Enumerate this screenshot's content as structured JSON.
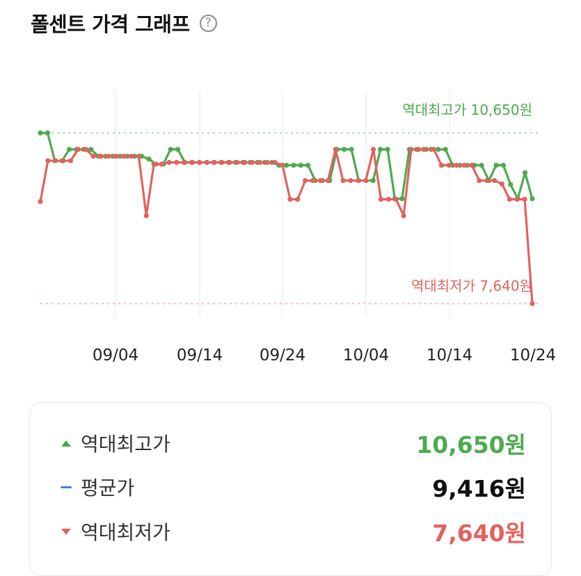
{
  "header": {
    "title": "폴센트 가격 그래프",
    "help_glyph": "?"
  },
  "chart_data": {
    "type": "line",
    "x_tick_labels": [
      "09/04",
      "09/14",
      "09/24",
      "10/04",
      "10/14",
      "10/24"
    ],
    "x_range": [
      "08/29",
      "10/24"
    ],
    "y_range": [
      7400,
      11400
    ],
    "series": [
      {
        "color": "#4caa4e",
        "values": [
          10650,
          10650,
          10160,
          10160,
          10360,
          10360,
          10360,
          10360,
          10240,
          10240,
          10240,
          10240,
          10240,
          10240,
          10240,
          10190,
          10100,
          10100,
          10360,
          10360,
          10130,
          10130,
          10130,
          10130,
          10130,
          10130,
          10130,
          10130,
          10130,
          10130,
          10130,
          10130,
          10130,
          10080,
          10080,
          10080,
          10080,
          10080,
          9810,
          9810,
          9810,
          10360,
          10360,
          10360,
          9810,
          9810,
          9810,
          10360,
          10360,
          9490,
          9490,
          10360,
          10360,
          10360,
          10360,
          10360,
          10360,
          10080,
          10080,
          10080,
          10080,
          10080,
          9810,
          10080,
          10080,
          9740,
          9490,
          9950,
          9490
        ]
      },
      {
        "color": "#e2625f",
        "values": [
          9440,
          10160,
          10160,
          10160,
          10160,
          10360,
          10360,
          10240,
          10240,
          10240,
          10240,
          10240,
          10240,
          10240,
          9190,
          10100,
          10100,
          10130,
          10130,
          10130,
          10130,
          10130,
          10130,
          10130,
          10130,
          10130,
          10130,
          10130,
          10130,
          10130,
          10130,
          10130,
          10080,
          9480,
          9480,
          9810,
          9810,
          9810,
          9810,
          10360,
          9810,
          9810,
          9810,
          9810,
          10360,
          9480,
          9480,
          9480,
          9190,
          10360,
          10360,
          10360,
          10360,
          10080,
          10080,
          10080,
          10080,
          10080,
          9810,
          9810,
          9810,
          9750,
          9480,
          9480,
          9480,
          7640
        ]
      }
    ],
    "reference_lines": [
      {
        "label": "역대최고가 10,650원",
        "value": 10650,
        "color": "#4caa4e"
      },
      {
        "label": "역대최저가 7,640원",
        "value": 7640,
        "color": "#e2625f"
      }
    ],
    "grid": "vertical"
  },
  "summary": {
    "rows": [
      {
        "label": "역대최고가",
        "value": "10,650원",
        "color": "#4caa4e",
        "marker": "triangle-up-icon"
      },
      {
        "label": "평균가",
        "value": "9,416원",
        "color": "#111111",
        "marker": "dash-icon"
      },
      {
        "label": "역대최저가",
        "value": "7,640원",
        "color": "#e2625f",
        "marker": "triangle-down-icon"
      }
    ]
  }
}
